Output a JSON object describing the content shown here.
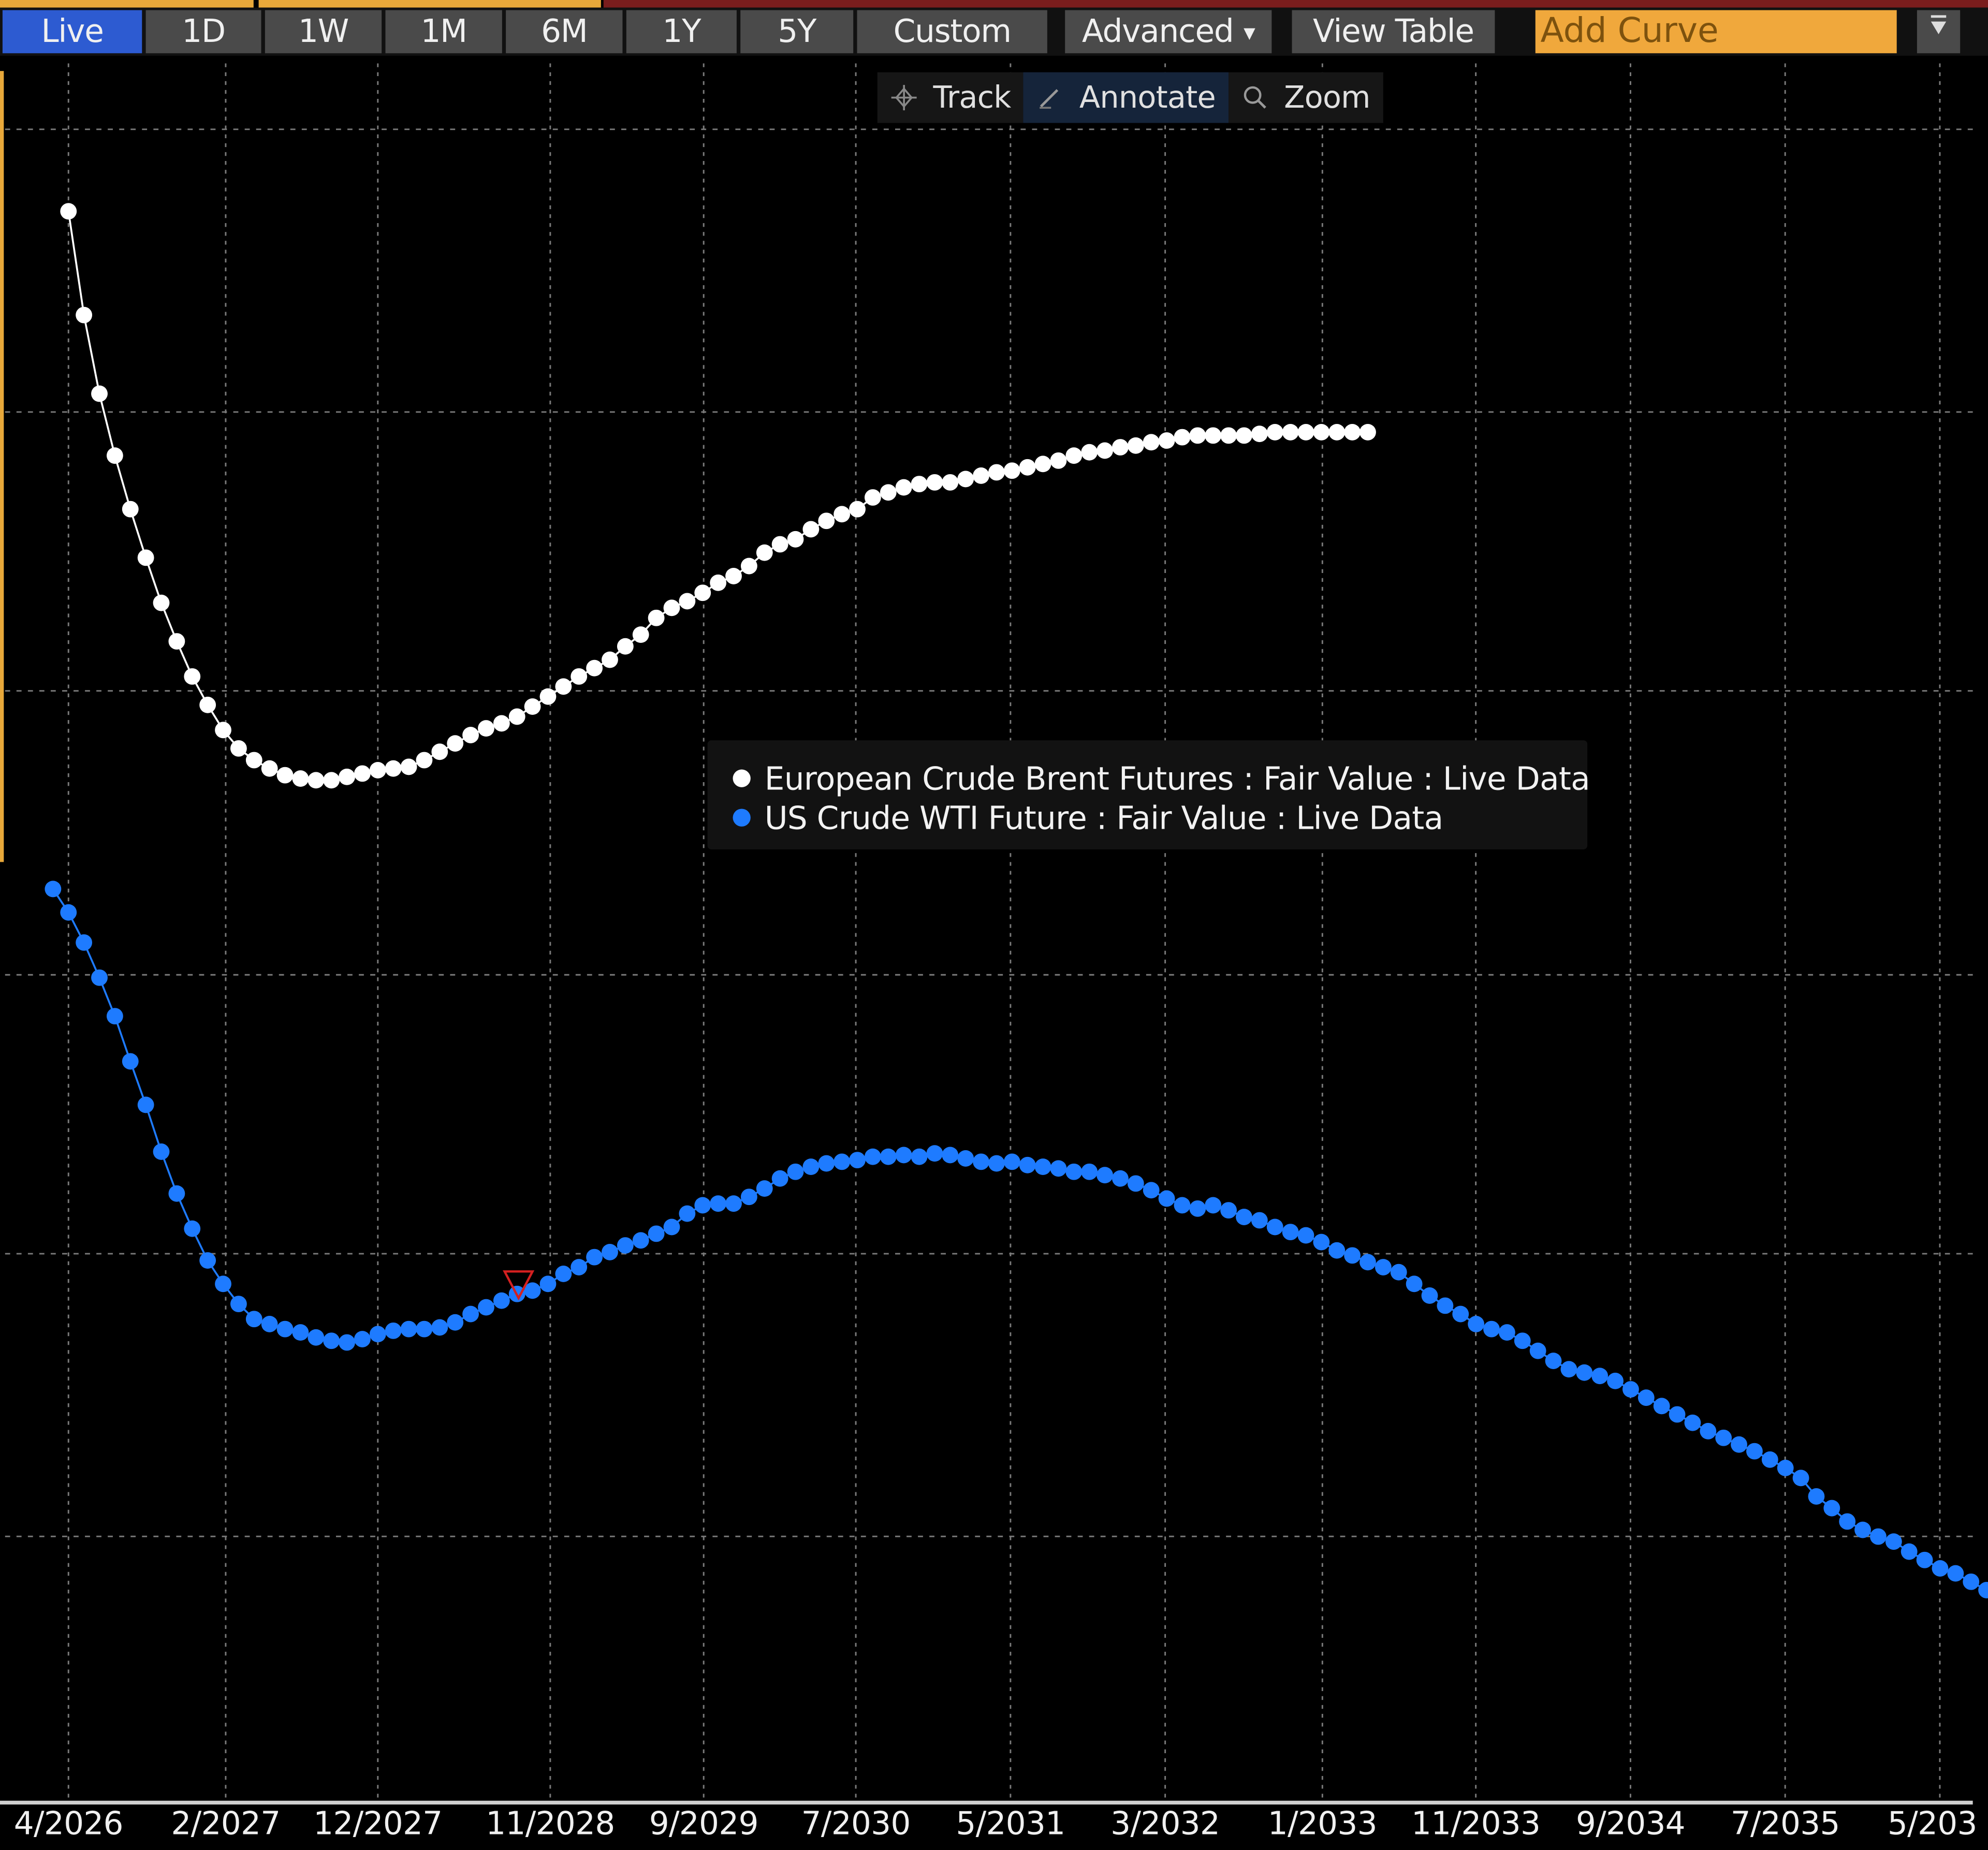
{
  "toolbar": {
    "range_buttons": [
      {
        "label": "Live",
        "active": true
      },
      {
        "label": "1D",
        "active": false
      },
      {
        "label": "1W",
        "active": false
      },
      {
        "label": "1M",
        "active": false
      },
      {
        "label": "6M",
        "active": false
      },
      {
        "label": "1Y",
        "active": false
      },
      {
        "label": "5Y",
        "active": false
      },
      {
        "label": "Custom",
        "active": false
      }
    ],
    "advanced_label": "Advanced",
    "view_table_label": "View Table",
    "add_curve_placeholder": "Add Curve",
    "menu_icon": "dropdown-menu-icon"
  },
  "chart_tools": {
    "track_label": "Track",
    "annotate_label": "Annotate",
    "zoom_label": "Zoom",
    "active": "Annotate"
  },
  "legend": {
    "items": [
      {
        "label": "European Crude Brent Futures : Fair Value : Live Data",
        "color": "#ffffff"
      },
      {
        "label": "US Crude WTI Future : Fair Value : Live Data",
        "color": "#1e7bff"
      }
    ]
  },
  "colors": {
    "background": "#000000",
    "brent": "#ffffff",
    "wti": "#1e7bff",
    "annotation": "#d42020",
    "grid": "#8a8a8a",
    "active_tab": "#2d5bd1",
    "add_curve": "#f0a83c"
  },
  "chart_data": {
    "type": "line",
    "title": "",
    "xlabel": "",
    "ylabel": "",
    "y_axis_note": "No y-axis tick labels visible; values are relative vertical positions (0 = x-axis baseline, 100 = top gridline)",
    "x_tick_labels": [
      "4/2026",
      "2/2027",
      "12/2027",
      "11/2028",
      "9/2029",
      "7/2030",
      "5/2031",
      "3/2032",
      "1/2033",
      "11/2033",
      "9/2034",
      "7/2035",
      "5/203"
    ],
    "grid": true,
    "legend_position": "center",
    "ylim": [
      0,
      100
    ],
    "series": [
      {
        "name": "European Crude Brent Futures : Fair Value : Live Data",
        "color": "#ffffff",
        "start": "4/2026",
        "step": "1 month",
        "values": [
          95.1,
          88.9,
          84.2,
          80.5,
          77.3,
          74.4,
          71.7,
          69.4,
          67.3,
          65.6,
          64.1,
          63.0,
          62.3,
          61.8,
          61.4,
          61.2,
          61.1,
          61.1,
          61.3,
          61.5,
          61.7,
          61.8,
          61.9,
          62.3,
          62.8,
          63.3,
          63.8,
          64.2,
          64.5,
          64.9,
          65.5,
          66.1,
          66.7,
          67.3,
          67.8,
          68.3,
          69.1,
          69.8,
          70.8,
          71.4,
          71.8,
          72.3,
          72.9,
          73.3,
          73.9,
          74.7,
          75.2,
          75.5,
          76.1,
          76.6,
          77.0,
          77.3,
          78.0,
          78.3,
          78.6,
          78.8,
          78.9,
          78.9,
          79.1,
          79.3,
          79.5,
          79.6,
          79.8,
          80.0,
          80.2,
          80.5,
          80.7,
          80.8,
          81.0,
          81.1,
          81.3,
          81.4,
          81.6,
          81.7,
          81.7,
          81.7,
          81.7,
          81.8,
          81.9,
          81.9,
          81.9,
          81.9,
          81.9,
          81.9,
          81.9
        ]
      },
      {
        "name": "US Crude WTI Future : Fair Value : Live Data",
        "color": "#1e7bff",
        "start": "3/2026",
        "step": "1 month",
        "values": [
          54.6,
          53.2,
          51.4,
          49.3,
          47.0,
          44.3,
          41.7,
          38.9,
          36.4,
          34.3,
          32.4,
          31.0,
          29.8,
          28.9,
          28.6,
          28.3,
          28.1,
          27.8,
          27.6,
          27.5,
          27.7,
          28.0,
          28.2,
          28.3,
          28.3,
          28.4,
          28.7,
          29.2,
          29.6,
          30.0,
          30.4,
          30.6,
          31.0,
          31.6,
          32.0,
          32.6,
          32.9,
          33.3,
          33.6,
          34.0,
          34.4,
          35.2,
          35.7,
          35.8,
          35.8,
          36.2,
          36.7,
          37.3,
          37.7,
          38.0,
          38.2,
          38.3,
          38.4,
          38.6,
          38.6,
          38.7,
          38.6,
          38.8,
          38.7,
          38.5,
          38.3,
          38.2,
          38.3,
          38.1,
          38.0,
          37.9,
          37.7,
          37.7,
          37.5,
          37.3,
          37.0,
          36.6,
          36.1,
          35.7,
          35.5,
          35.7,
          35.4,
          35.0,
          34.8,
          34.4,
          34.1,
          33.9,
          33.5,
          33.0,
          32.7,
          32.3,
          32.0,
          31.7,
          31.0,
          30.3,
          29.7,
          29.2,
          28.6,
          28.3,
          28.1,
          27.6,
          27.0,
          26.4,
          25.9,
          25.7,
          25.5,
          25.2,
          24.7,
          24.2,
          23.7,
          23.2,
          22.7,
          22.2,
          21.8,
          21.4,
          21.0,
          20.5,
          20.0,
          19.4,
          18.3,
          17.6,
          16.8,
          16.3,
          15.9,
          15.6,
          15.0,
          14.5,
          14.0,
          13.7,
          13.2,
          12.7,
          11.9
        ]
      }
    ],
    "annotations": [
      {
        "type": "triangle-down-outline",
        "color": "#d42020",
        "series": "US Crude WTI Future : Fair Value : Live Data",
        "approx_x": "9/2028"
      }
    ]
  }
}
